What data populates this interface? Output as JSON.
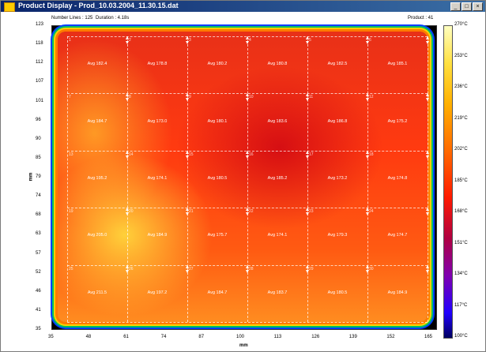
{
  "window": {
    "title": "Product Display - Prod_10.03.2004_11.30.15.dat",
    "buttons": [
      "_",
      "□",
      "×"
    ]
  },
  "status": {
    "number_lines": "Number Lines : 125",
    "duration": "Duration : 4.18s",
    "product": "Product : 41"
  },
  "y_axis": {
    "label": "mm",
    "ticks": [
      "123",
      "118",
      "112",
      "107",
      "101",
      "96",
      "90",
      "85",
      "79",
      "74",
      "68",
      "63",
      "57",
      "52",
      "46",
      "41",
      "35"
    ]
  },
  "x_axis": {
    "label": "mm",
    "ticks": [
      "35",
      "48",
      "61",
      "74",
      "87",
      "100",
      "113",
      "126",
      "139",
      "152",
      "165"
    ]
  },
  "colorbar": {
    "labels": [
      "270°C",
      "253°C",
      "236°C",
      "219°C",
      "202°C",
      "185°C",
      "168°C",
      "151°C",
      "134°C",
      "117°C",
      "100°C"
    ]
  },
  "grid": {
    "rows": [
      [
        "Avg 182.4",
        "Avg 178.8",
        "Avg 180.2",
        "Avg 180.8",
        "Avg 182.5",
        "Avg 185.1"
      ],
      [
        "Avg 184.7",
        "Avg 173.0",
        "Avg 180.1",
        "Avg 183.6",
        "Avg 186.8",
        "Avg 175.2"
      ],
      [
        "Avg 195.2",
        "Avg 174.1",
        "Avg 180.5",
        "Avg 185.2",
        "Avg 173.2",
        "Avg 174.8"
      ],
      [
        "Avg 205.0",
        "Avg 184.9",
        "Avg 175.7",
        "Avg 174.1",
        "Avg 179.3",
        "Avg 174.7"
      ],
      [
        "Avg 211.5",
        "Avg 197.2",
        "Avg 184.7",
        "Avg 183.7",
        "Avg 180.5",
        "Avg 184.9"
      ]
    ],
    "cell_ids": [
      [
        "1",
        "2",
        "3",
        "4",
        "5",
        "6"
      ],
      [
        "7",
        "8",
        "9",
        "10",
        "11",
        "12"
      ],
      [
        "13",
        "14",
        "15",
        "16",
        "17",
        "18"
      ],
      [
        "19",
        "20",
        "21",
        "22",
        "23",
        "24"
      ],
      [
        "25",
        "26",
        "27",
        "28",
        "29",
        "30"
      ]
    ]
  }
}
